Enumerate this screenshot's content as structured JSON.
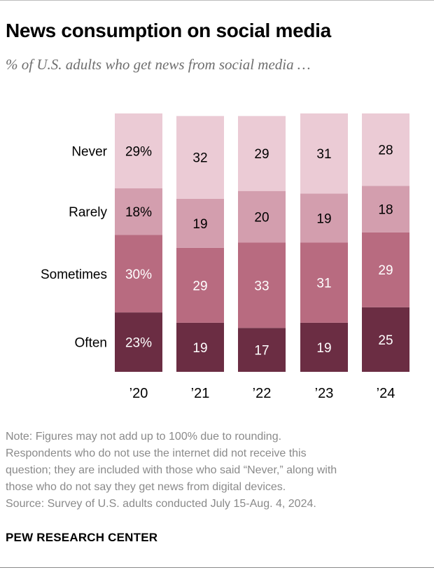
{
  "title": "News consumption on social media",
  "subtitle": "% of U.S. adults who get news from social media …",
  "note_lines": [
    "Note: Figures may not add up to 100% due to rounding.",
    "Respondents who do not use the internet did not receive this",
    "question; they are included with those who said “Never,” along with",
    "those who do not say they get news from digital devices.",
    "Source: Survey of U.S. adults conducted July 15-Aug. 4, 2024."
  ],
  "brand": "PEW RESEARCH CENTER",
  "colors": {
    "Often": "#6b2d43",
    "Sometimes": "#b86b80",
    "Rarely": "#d39eae",
    "Never": "#ebcbd5"
  },
  "chart_data": {
    "type": "bar",
    "stacked": true,
    "orientation": "vertical",
    "categories": [
      "’20",
      "’21",
      "’22",
      "’23",
      "’24"
    ],
    "series": [
      {
        "name": "Often",
        "values": [
          23,
          19,
          17,
          19,
          25
        ],
        "labels": [
          "23%",
          "19",
          "17",
          "19",
          "25"
        ]
      },
      {
        "name": "Sometimes",
        "values": [
          30,
          29,
          33,
          31,
          29
        ],
        "labels": [
          "30%",
          "29",
          "33",
          "31",
          "29"
        ]
      },
      {
        "name": "Rarely",
        "values": [
          18,
          19,
          20,
          19,
          18
        ],
        "labels": [
          "18%",
          "19",
          "20",
          "19",
          "18"
        ]
      },
      {
        "name": "Never",
        "values": [
          29,
          32,
          29,
          31,
          28
        ],
        "labels": [
          "29%",
          "32",
          "29",
          "31",
          "28"
        ]
      }
    ],
    "ylim": [
      0,
      100
    ],
    "grid": false,
    "legend": "left"
  }
}
